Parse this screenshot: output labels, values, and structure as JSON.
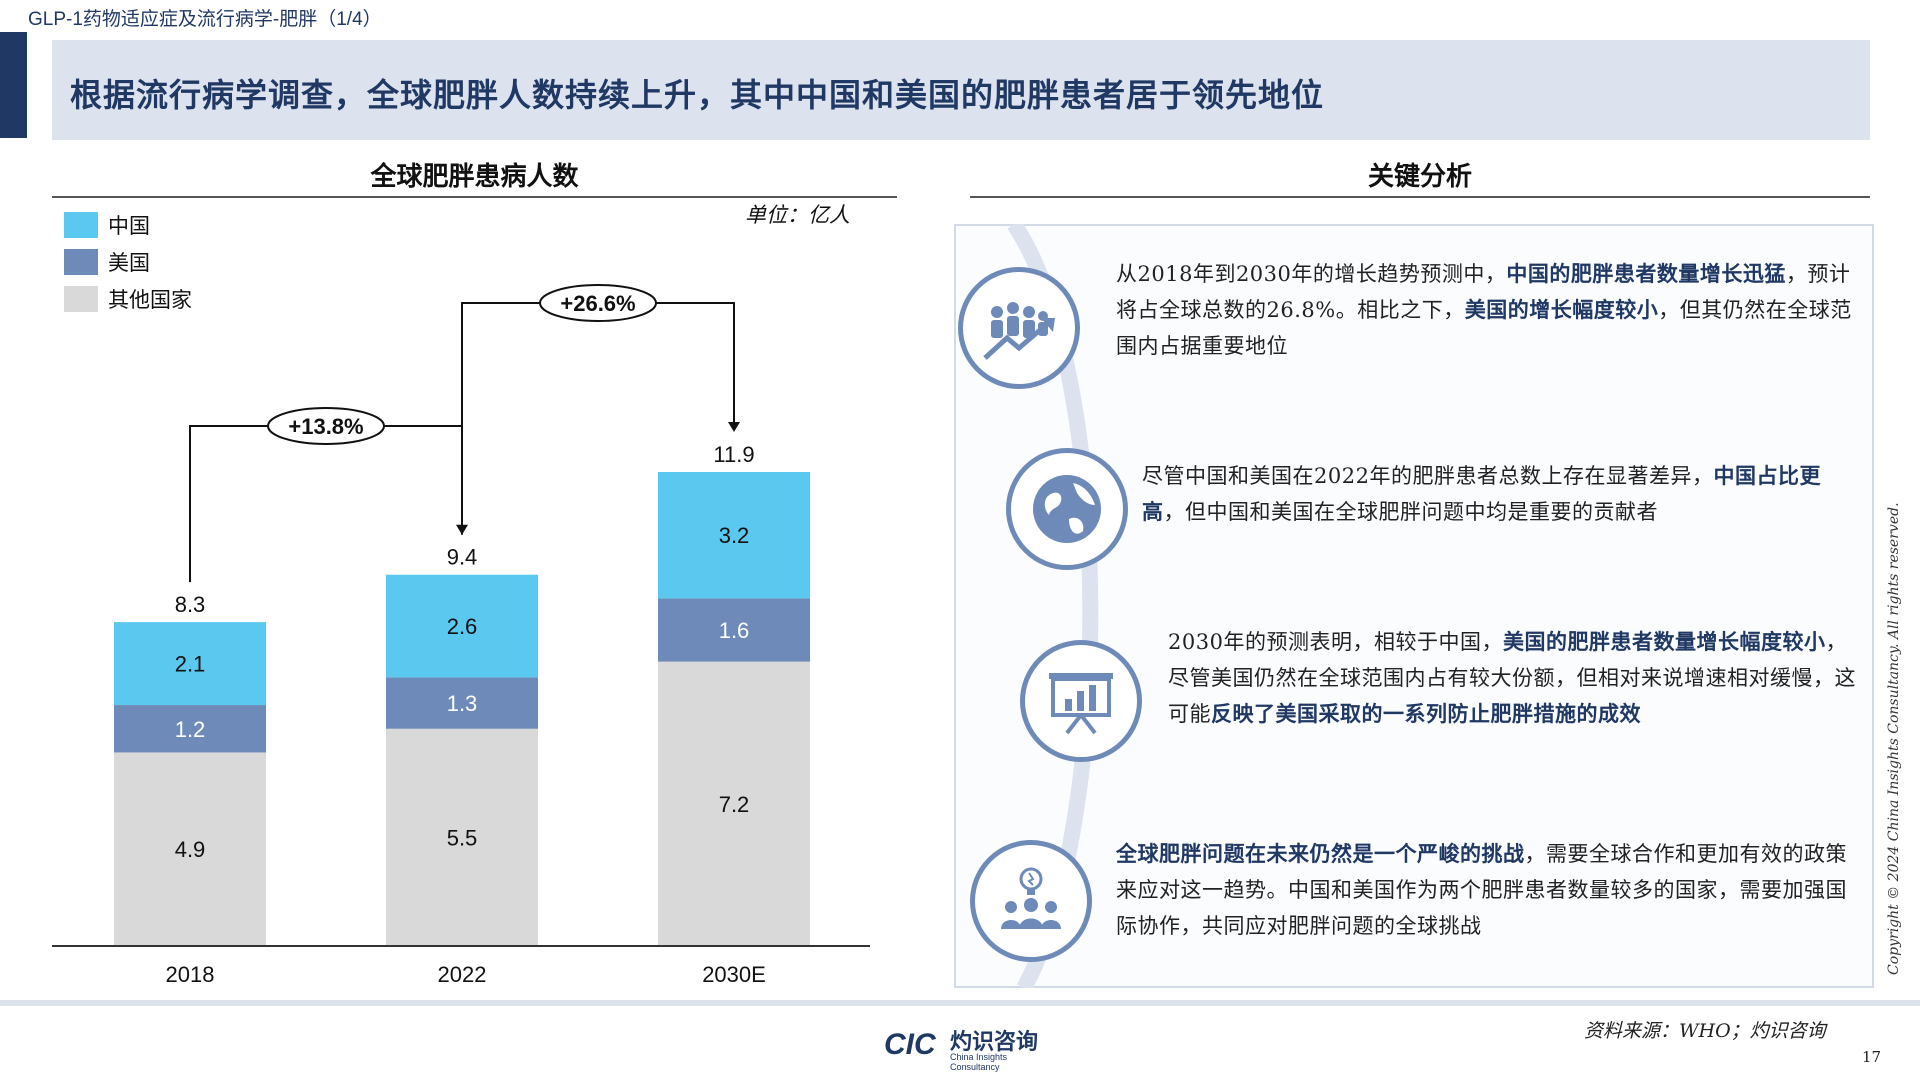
{
  "header": {
    "section_label": "GLP-1药物适应症及流行病学-肥胖（1/4）",
    "title": "根据流行病学调查，全球肥胖人数持续上升，其中中国和美国的肥胖患者居于领先地位"
  },
  "left_panel": {
    "title": "全球肥胖患病人数",
    "unit": "单位：亿人"
  },
  "chart_data": {
    "type": "bar",
    "stacked": true,
    "categories": [
      "2018",
      "2022",
      "2030E"
    ],
    "series": [
      {
        "name": "其他国家",
        "values": [
          4.9,
          5.5,
          7.2
        ],
        "color": "#d9d9d9"
      },
      {
        "name": "美国",
        "values": [
          1.2,
          1.3,
          1.6
        ],
        "color": "#6d8ab8"
      },
      {
        "name": "中国",
        "values": [
          2.1,
          2.6,
          3.2
        ],
        "color": "#5bc8ef"
      }
    ],
    "totals": [
      8.3,
      9.4,
      11.9
    ],
    "totals_labels": [
      "8.3",
      "9.4",
      "11.9"
    ],
    "value_labels": [
      [
        "4.9",
        "5.5",
        "7.2"
      ],
      [
        "1.2",
        "1.3",
        "1.6"
      ],
      [
        "2.1",
        "2.6",
        "3.2"
      ]
    ],
    "growth_annotations": [
      {
        "from": "2018",
        "to": "2022",
        "label": "+13.8%"
      },
      {
        "from": "2022",
        "to": "2030E",
        "label": "+26.6%"
      }
    ],
    "ylim": [
      0,
      12
    ],
    "legend": [
      "中国",
      "美国",
      "其他国家"
    ],
    "legend_position": "top-left"
  },
  "right_panel": {
    "title": "关键分析",
    "items": [
      {
        "icon": "growth-people-icon",
        "parts": [
          {
            "t": "从2018年到2030年的增长趋势预测中，",
            "b": false
          },
          {
            "t": "中国的肥胖患者数量增长迅猛",
            "b": true
          },
          {
            "t": "，预计将占全球总数的26.8%。相比之下，",
            "b": false
          },
          {
            "t": "美国的增长幅度较小",
            "b": true
          },
          {
            "t": "，但其仍然在全球范围内占据重要地位",
            "b": false
          }
        ]
      },
      {
        "icon": "globe-icon",
        "parts": [
          {
            "t": "尽管中国和美国在2022年的肥胖患者总数上存在显著差异，",
            "b": false
          },
          {
            "t": "中国占比更高",
            "b": true
          },
          {
            "t": "，但中国和美国在全球肥胖问题中均是重要的贡献者",
            "b": false
          }
        ]
      },
      {
        "icon": "presentation-chart-icon",
        "parts": [
          {
            "t": "2030年的预测表明，相较于中国，",
            "b": false
          },
          {
            "t": "美国的肥胖患者数量增长幅度较小",
            "b": true
          },
          {
            "t": "，尽管美国仍然在全球范围内占有较大份额，但相对来说增速相对缓慢，这可能",
            "b": false
          },
          {
            "t": "反映了美国采取的一系列防止肥胖措施的成效",
            "b": true
          }
        ]
      },
      {
        "icon": "team-idea-icon",
        "parts": [
          {
            "t": "全球肥胖问题在未来仍然是一个严峻的挑战",
            "b": true
          },
          {
            "t": "，需要全球合作和更加有效的政策来应对这一趋势。中国和美国作为两个肥胖患者数量较多的国家，需要加强国际协作，共同应对肥胖问题的全球挑战",
            "b": false
          }
        ]
      }
    ]
  },
  "footer": {
    "logo_cic": "CIC",
    "logo_cn": "灼识咨询",
    "logo_en": "China Insights Consultancy",
    "source": "资料来源：WHO；灼识咨询",
    "page_number": "17",
    "copyright": "Copyright © 2024 China Insights Consultancy. All rights reserved."
  },
  "colors": {
    "navy": "#1f3864",
    "china": "#5bc8ef",
    "usa": "#6d8ab8",
    "other": "#d9d9d9"
  }
}
